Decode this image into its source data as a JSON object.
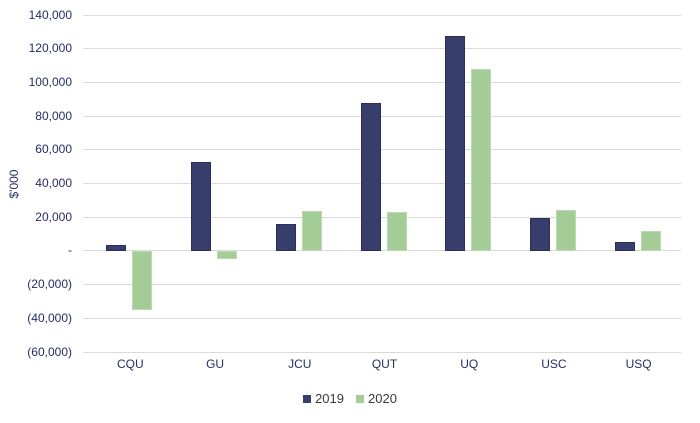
{
  "chart_data": {
    "type": "bar",
    "title": "",
    "xlabel": "",
    "ylabel": "$'000",
    "categories": [
      "CQU",
      "GU",
      "JCU",
      "QUT",
      "UQ",
      "USC",
      "USQ"
    ],
    "series": [
      {
        "name": "2019",
        "color": "#383E6B",
        "border_color": "#2B3058",
        "values": [
          3500,
          53000,
          16000,
          87500,
          127500,
          19500,
          5500
        ]
      },
      {
        "name": "2020",
        "color": "#A3CC96",
        "border_color": "#BCDAAF",
        "values": [
          -35000,
          -5000,
          23500,
          23000,
          108000,
          24000,
          12000
        ]
      }
    ],
    "ylim": [
      -60000,
      140000
    ],
    "yticks": [
      {
        "value": 140000,
        "label": "140,000"
      },
      {
        "value": 120000,
        "label": "120,000"
      },
      {
        "value": 100000,
        "label": "100,000"
      },
      {
        "value": 80000,
        "label": "80,000"
      },
      {
        "value": 60000,
        "label": "60,000"
      },
      {
        "value": 40000,
        "label": "40,000"
      },
      {
        "value": 20000,
        "label": "20,000"
      },
      {
        "value": 0,
        "label": "-"
      },
      {
        "value": -20000,
        "label": "(20,000)"
      },
      {
        "value": -40000,
        "label": "(40,000)"
      },
      {
        "value": -60000,
        "label": "(60,000)"
      }
    ],
    "grid": "horizontal",
    "legend_position": "bottom",
    "colors": {
      "background": "#FFFFFF",
      "gridline": "#DADADA",
      "tick_label": "#262D64",
      "axis_title": "#262D64",
      "category_label": "#262D64",
      "legend_text": "#3A3A3A"
    }
  }
}
